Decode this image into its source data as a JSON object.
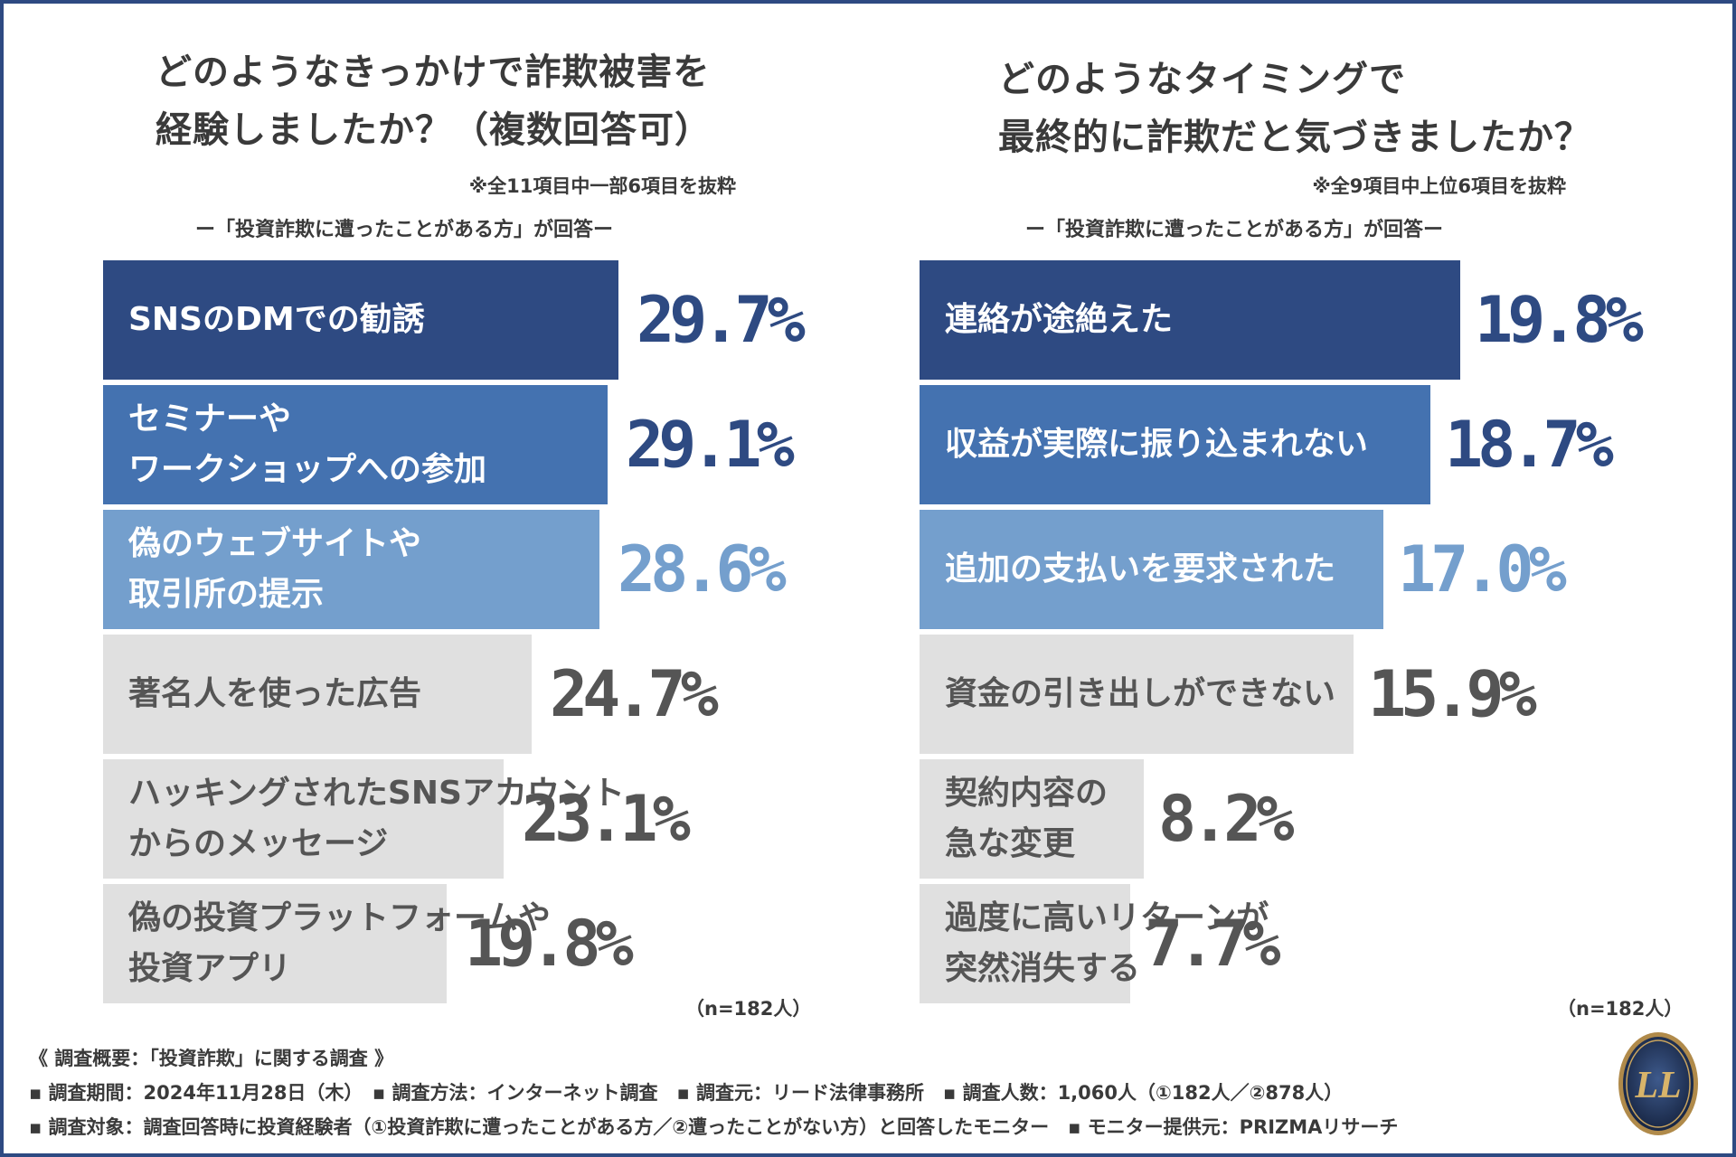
{
  "chart_data": [
    {
      "type": "bar",
      "orientation": "horizontal",
      "title": [
        "どのようなきっかけで詐欺被害を",
        "経験しましたか？（複数回答可）"
      ],
      "note": "※全11項目中一部6項目を抜粋",
      "respondent": "ー「投資詐欺に遭ったことがある方」が回答ー",
      "categories": [
        [
          "SNSのDMでの勧誘"
        ],
        [
          "セミナーや",
          "ワークショップへの参加"
        ],
        [
          "偽のウェブサイトや",
          "取引所の提示"
        ],
        [
          "著名人を使った広告"
        ],
        [
          "ハッキングされたSNSアカウント",
          "からのメッセージ"
        ],
        [
          "偽の投資プラットフォームや",
          "投資アプリ"
        ]
      ],
      "values": [
        29.7,
        29.1,
        28.6,
        24.7,
        23.1,
        19.8
      ],
      "value_labels": [
        "29.7%",
        "29.1%",
        "28.6%",
        "24.7%",
        "23.1%",
        "19.8%"
      ],
      "bar_colors": [
        "#2e4a82",
        "#4472b0",
        "#749fcd",
        "#e0e0e0",
        "#e0e0e0",
        "#e0e0e0"
      ],
      "value_colors": [
        "#2e4a82",
        "#2e4a82",
        "#749fcd",
        "#555555",
        "#555555",
        "#555555"
      ],
      "n_note": "（n=182人）"
    },
    {
      "type": "bar",
      "orientation": "horizontal",
      "title": [
        "どのようなタイミングで",
        "最終的に詐欺だと気づきましたか？"
      ],
      "note": "※全9項目中上位6項目を抜粋",
      "respondent": "ー「投資詐欺に遭ったことがある方」が回答ー",
      "categories": [
        [
          "連絡が途絶えた"
        ],
        [
          "収益が実際に振り込まれない"
        ],
        [
          "追加の支払いを要求された"
        ],
        [
          "資金の引き出しができない"
        ],
        [
          "契約内容の",
          "急な変更"
        ],
        [
          "過度に高いリターンが",
          "突然消失する"
        ]
      ],
      "values": [
        19.8,
        18.7,
        17.0,
        15.9,
        8.2,
        7.7
      ],
      "value_labels": [
        "19.8%",
        "18.7%",
        "17.0%",
        "15.9%",
        "8.2%",
        "7.7%"
      ],
      "bar_colors": [
        "#2e4a82",
        "#4472b0",
        "#749fcd",
        "#e0e0e0",
        "#e0e0e0",
        "#e0e0e0"
      ],
      "value_colors": [
        "#2e4a82",
        "#2e4a82",
        "#749fcd",
        "#555555",
        "#555555",
        "#555555"
      ],
      "n_note": "（n=182人）"
    }
  ],
  "footer": {
    "line1": "《 調査概要：「投資詐欺」に関する調査 》",
    "line2": "▪ 調査期間：2024年11月28日（木）　▪ 調査方法：インターネット調査　▪ 調査元：リード法律事務所　▪ 調査人数：1,060人（①182人／②878人）",
    "line3": "▪ 調査対象：調査回答時に投資経験者（①投資詐欺に遭ったことがある方／②遭ったことがない方）と回答したモニター　▪ モニター提供元：PRIZMAリサーチ"
  },
  "logo": {
    "name": "law-firm-emblem",
    "text": "LL"
  }
}
